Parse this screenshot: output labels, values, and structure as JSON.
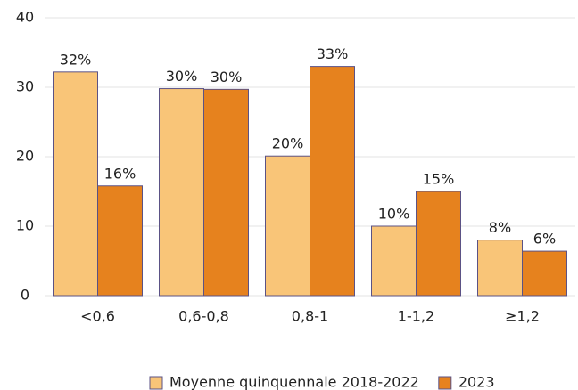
{
  "chart_data": {
    "type": "bar",
    "categories": [
      "<0,6",
      "0,6-0,8",
      "0,8-1",
      "1-1,2",
      "≥1,2"
    ],
    "series": [
      {
        "name": "Moyenne quinquennale 2018-2022",
        "color": "#f9c578",
        "values": [
          32.2,
          29.8,
          20.1,
          10.0,
          8.0
        ],
        "value_labels": [
          "32%",
          "30%",
          "20%",
          "10%",
          "8%"
        ]
      },
      {
        "name": "2023",
        "color": "#e6821e",
        "values": [
          15.8,
          29.7,
          33.0,
          15.0,
          6.4
        ],
        "value_labels": [
          "16%",
          "30%",
          "33%",
          "15%",
          "6%"
        ]
      }
    ],
    "ylim": [
      0,
      40
    ],
    "yticks": [
      0,
      10,
      20,
      30,
      40
    ],
    "grid": true,
    "legend": "bottom"
  }
}
